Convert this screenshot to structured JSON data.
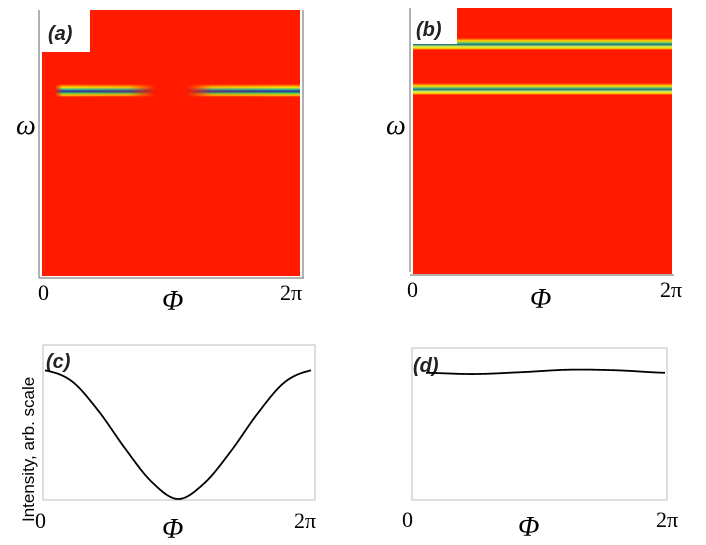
{
  "chart_data": [
    {
      "panel": "(a)",
      "type": "heatmap",
      "xlabel": "Φ",
      "ylabel": "ω",
      "x_ticks": [
        "0",
        "2π"
      ],
      "colors": {
        "background": "#ff1a00",
        "line_core": "#2a2aa0",
        "line_edge": "#ffd000"
      },
      "bands": [
        {
          "y_frac": 0.3,
          "profile": "fades toward center (Φ = π)"
        }
      ]
    },
    {
      "panel": "(b)",
      "type": "heatmap",
      "xlabel": "Φ",
      "ylabel": "ω",
      "x_ticks": [
        "0",
        "2π"
      ],
      "colors": {
        "background": "#ff1a00",
        "line_core": "#207080",
        "line_edge": "#e8f000"
      },
      "bands": [
        {
          "y_frac": 0.135,
          "profile": "uniform across Φ"
        },
        {
          "y_frac": 0.305,
          "profile": "uniform across Φ"
        }
      ]
    },
    {
      "panel": "(c)",
      "type": "line",
      "xlabel": "Φ",
      "ylabel": "Intensity,  arb. scale",
      "x_ticks": [
        "0",
        "2π"
      ],
      "series": [
        {
          "x": [
            0.0,
            0.1,
            0.2,
            0.3,
            0.4,
            0.5,
            0.6,
            0.7,
            0.8,
            0.9,
            1.0
          ],
          "y": [
            0.96,
            0.88,
            0.66,
            0.38,
            0.13,
            0.0,
            0.12,
            0.36,
            0.64,
            0.87,
            0.96
          ]
        }
      ]
    },
    {
      "panel": "(d)",
      "type": "line",
      "xlabel": "Φ",
      "ylabel": "",
      "x_ticks": [
        "0",
        "2π"
      ],
      "series": [
        {
          "x": [
            0.0,
            0.2,
            0.4,
            0.6,
            0.8,
            1.0
          ],
          "y": [
            0.8,
            0.79,
            0.805,
            0.825,
            0.82,
            0.8
          ]
        }
      ]
    }
  ]
}
